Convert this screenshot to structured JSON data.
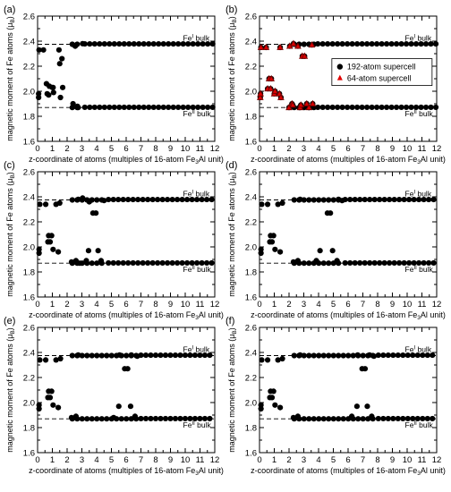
{
  "figure": {
    "ylabel_text": "magnetic moment of Fe atoms (μ",
    "ylabel_sub": "B",
    "ylabel_close": ")",
    "xlabel_pre": "z-coordinate of atoms (multiples of 16-atom Fe",
    "xlabel_sub": "3",
    "xlabel_post": "Al unit)",
    "ref_upper": {
      "value": 2.375,
      "base": "Fe",
      "sup": "I",
      "suffix": " bulk"
    },
    "ref_lower": {
      "value": 1.87,
      "base": "Fe",
      "sup": "II",
      "suffix": " bulk"
    }
  },
  "chart_data": [
    {
      "type": "scatter",
      "panel_label": "(a)",
      "xlim": [
        0,
        12
      ],
      "ylim": [
        1.6,
        2.6
      ],
      "xticks": [
        0,
        1,
        2,
        3,
        4,
        5,
        6,
        7,
        8,
        9,
        10,
        11,
        12
      ],
      "yticks": [
        1.6,
        1.8,
        2.0,
        2.2,
        2.4,
        2.6
      ],
      "series": [
        {
          "values": [
            [
              0.07,
              1.95
            ],
            [
              0.07,
              1.98
            ],
            [
              0.1,
              2.33
            ],
            [
              0.4,
              2.33
            ],
            [
              0.6,
              2.06
            ],
            [
              0.65,
              1.98
            ],
            [
              0.75,
              1.97
            ],
            [
              0.8,
              2.04
            ],
            [
              1.0,
              2.03
            ],
            [
              1.05,
              2.03
            ],
            [
              1.08,
              1.99
            ],
            [
              1.45,
              2.33
            ],
            [
              1.55,
              1.95
            ],
            [
              1.5,
              2.22
            ],
            [
              1.65,
              2.26
            ],
            [
              1.7,
              2.03
            ],
            [
              2.4,
              1.9
            ],
            [
              2.55,
              2.36
            ],
            [
              2.7,
              1.88
            ],
            [
              2.75,
              1.87
            ],
            [
              3.05,
              2.38
            ]
          ]
        }
      ]
    },
    {
      "type": "scatter",
      "panel_label": "(b)",
      "xlim": [
        0,
        12
      ],
      "ylim": [
        1.6,
        2.6
      ],
      "xticks": [
        0,
        1,
        2,
        3,
        4,
        5,
        6,
        7,
        8,
        9,
        10,
        11,
        12
      ],
      "yticks": [
        1.6,
        1.8,
        2.0,
        2.2,
        2.4,
        2.6
      ],
      "series": [
        {
          "name": "192-atom supercell",
          "values": [
            [
              0.05,
              1.95
            ],
            [
              0.07,
              1.98
            ],
            [
              0.1,
              2.35
            ],
            [
              0.45,
              2.35
            ],
            [
              0.55,
              2.02
            ],
            [
              0.65,
              2.1
            ],
            [
              0.75,
              2.02
            ],
            [
              0.8,
              2.1
            ],
            [
              1.0,
              1.98
            ],
            [
              1.05,
              2.0
            ],
            [
              1.35,
              1.98
            ],
            [
              1.4,
              2.35
            ],
            [
              1.45,
              1.95
            ],
            [
              2.0,
              1.87
            ],
            [
              2.05,
              2.36
            ],
            [
              2.2,
              1.9
            ],
            [
              2.25,
              1.89
            ],
            [
              2.3,
              2.38
            ],
            [
              2.6,
              2.36
            ],
            [
              2.75,
              1.87
            ],
            [
              2.8,
              1.89
            ],
            [
              2.9,
              2.28
            ],
            [
              3.05,
              2.28
            ],
            [
              3.2,
              1.9
            ],
            [
              3.35,
              1.87
            ],
            [
              3.55,
              2.37
            ],
            [
              3.6,
              1.9
            ]
          ]
        },
        {
          "name": "64-atom supercell",
          "values": [
            [
              0.05,
              1.95
            ],
            [
              0.07,
              1.98
            ],
            [
              0.1,
              2.35
            ],
            [
              0.45,
              2.35
            ],
            [
              0.55,
              2.02
            ],
            [
              0.65,
              2.1
            ],
            [
              0.75,
              2.02
            ],
            [
              0.8,
              2.1
            ],
            [
              1.0,
              1.98
            ],
            [
              1.05,
              2.0
            ],
            [
              1.35,
              1.98
            ],
            [
              1.4,
              2.35
            ],
            [
              1.45,
              1.95
            ],
            [
              2.0,
              1.87
            ],
            [
              2.05,
              2.36
            ],
            [
              2.2,
              1.9
            ],
            [
              2.25,
              1.89
            ],
            [
              2.3,
              2.38
            ],
            [
              2.6,
              2.36
            ],
            [
              2.75,
              1.87
            ],
            [
              2.8,
              1.89
            ],
            [
              2.9,
              2.28
            ],
            [
              3.05,
              2.28
            ],
            [
              3.2,
              1.9
            ],
            [
              3.35,
              1.87
            ],
            [
              3.55,
              2.37
            ],
            [
              3.6,
              1.9
            ]
          ]
        }
      ],
      "legend_position": "right"
    },
    {
      "type": "scatter",
      "panel_label": "(c)",
      "xlim": [
        0,
        12
      ],
      "ylim": [
        1.6,
        2.6
      ],
      "xticks": [
        0,
        1,
        2,
        3,
        4,
        5,
        6,
        7,
        8,
        9,
        10,
        11,
        12
      ],
      "yticks": [
        1.6,
        1.8,
        2.0,
        2.2,
        2.4,
        2.6
      ],
      "series": [
        {
          "values": [
            [
              0.1,
              1.95
            ],
            [
              0.1,
              1.98
            ],
            [
              0.15,
              2.34
            ],
            [
              0.55,
              2.34
            ],
            [
              0.7,
              2.04
            ],
            [
              0.75,
              2.09
            ],
            [
              0.85,
              2.04
            ],
            [
              0.95,
              2.09
            ],
            [
              1.05,
              1.98
            ],
            [
              1.25,
              2.34
            ],
            [
              1.4,
              1.96
            ],
            [
              1.5,
              2.35
            ],
            [
              2.3,
              1.88
            ],
            [
              2.6,
              1.89
            ],
            [
              2.75,
              2.38
            ],
            [
              2.85,
              1.87
            ],
            [
              3.05,
              2.39
            ],
            [
              3.3,
              1.89
            ],
            [
              3.45,
              1.97
            ],
            [
              3.5,
              2.36
            ],
            [
              3.75,
              2.27
            ],
            [
              3.95,
              2.27
            ],
            [
              4.1,
              1.97
            ],
            [
              4.3,
              1.89
            ],
            [
              4.5,
              2.37
            ]
          ]
        }
      ]
    },
    {
      "type": "scatter",
      "panel_label": "(d)",
      "xlim": [
        0,
        12
      ],
      "ylim": [
        1.6,
        2.6
      ],
      "xticks": [
        0,
        1,
        2,
        3,
        4,
        5,
        6,
        7,
        8,
        9,
        10,
        11,
        12
      ],
      "yticks": [
        1.6,
        1.8,
        2.0,
        2.2,
        2.4,
        2.6
      ],
      "series": [
        {
          "values": [
            [
              0.1,
              1.95
            ],
            [
              0.1,
              1.98
            ],
            [
              0.15,
              2.34
            ],
            [
              0.55,
              2.34
            ],
            [
              0.7,
              2.04
            ],
            [
              0.75,
              2.09
            ],
            [
              0.85,
              2.04
            ],
            [
              0.95,
              2.09
            ],
            [
              1.05,
              1.98
            ],
            [
              1.25,
              2.34
            ],
            [
              1.4,
              1.96
            ],
            [
              1.55,
              2.35
            ],
            [
              2.3,
              1.88
            ],
            [
              2.6,
              1.89
            ],
            [
              2.75,
              2.38
            ],
            [
              3.85,
              1.89
            ],
            [
              4.1,
              1.97
            ],
            [
              4.6,
              2.27
            ],
            [
              4.8,
              2.27
            ],
            [
              4.95,
              1.97
            ],
            [
              5.25,
              1.89
            ],
            [
              5.35,
              2.38
            ],
            [
              5.6,
              2.37
            ]
          ]
        }
      ]
    },
    {
      "type": "scatter",
      "panel_label": "(e)",
      "xlim": [
        0,
        12
      ],
      "ylim": [
        1.6,
        2.6
      ],
      "xticks": [
        0,
        1,
        2,
        3,
        4,
        5,
        6,
        7,
        8,
        9,
        10,
        11,
        12
      ],
      "yticks": [
        1.6,
        1.8,
        2.0,
        2.2,
        2.4,
        2.6
      ],
      "series": [
        {
          "values": [
            [
              0.1,
              1.95
            ],
            [
              0.1,
              1.98
            ],
            [
              0.15,
              2.34
            ],
            [
              0.55,
              2.34
            ],
            [
              0.7,
              2.04
            ],
            [
              0.75,
              2.09
            ],
            [
              0.85,
              2.04
            ],
            [
              0.95,
              2.09
            ],
            [
              1.05,
              1.98
            ],
            [
              1.25,
              2.34
            ],
            [
              1.4,
              1.96
            ],
            [
              1.55,
              2.35
            ],
            [
              2.3,
              1.88
            ],
            [
              2.6,
              1.89
            ],
            [
              2.75,
              2.38
            ],
            [
              5.15,
              1.88
            ],
            [
              5.5,
              1.97
            ],
            [
              5.55,
              2.38
            ],
            [
              5.9,
              2.27
            ],
            [
              6.1,
              2.27
            ],
            [
              6.3,
              1.97
            ],
            [
              6.35,
              2.38
            ],
            [
              6.6,
              1.89
            ],
            [
              6.75,
              2.37
            ]
          ]
        }
      ]
    },
    {
      "type": "scatter",
      "panel_label": "(f)",
      "xlim": [
        0,
        12
      ],
      "ylim": [
        1.6,
        2.6
      ],
      "xticks": [
        0,
        1,
        2,
        3,
        4,
        5,
        6,
        7,
        8,
        9,
        10,
        11,
        12
      ],
      "yticks": [
        1.6,
        1.8,
        2.0,
        2.2,
        2.4,
        2.6
      ],
      "series": [
        {
          "values": [
            [
              0.1,
              1.95
            ],
            [
              0.1,
              1.98
            ],
            [
              0.15,
              2.34
            ],
            [
              0.55,
              2.34
            ],
            [
              0.7,
              2.04
            ],
            [
              0.75,
              2.09
            ],
            [
              0.85,
              2.04
            ],
            [
              0.95,
              2.09
            ],
            [
              1.05,
              1.98
            ],
            [
              1.25,
              2.34
            ],
            [
              1.4,
              1.96
            ],
            [
              1.55,
              2.35
            ],
            [
              2.3,
              1.88
            ],
            [
              2.6,
              1.89
            ],
            [
              2.75,
              2.38
            ],
            [
              6.25,
              1.89
            ],
            [
              6.6,
              1.97
            ],
            [
              6.65,
              2.38
            ],
            [
              6.95,
              2.27
            ],
            [
              7.15,
              2.27
            ],
            [
              7.3,
              1.97
            ],
            [
              7.45,
              2.38
            ],
            [
              7.6,
              1.89
            ],
            [
              7.75,
              2.37
            ]
          ]
        }
      ]
    }
  ]
}
